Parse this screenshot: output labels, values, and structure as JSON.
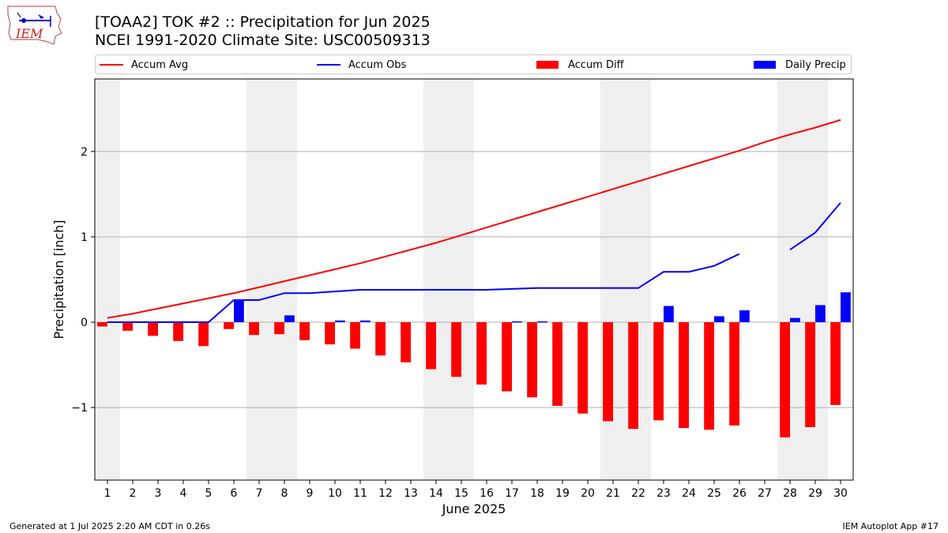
{
  "header": {
    "title_line1": "[TOAA2] TOK #2 :: Precipitation for Jun 2025",
    "title_line2": "NCEI 1991-2020 Climate Site: USC00509313",
    "logo_text": "IEM"
  },
  "legend": {
    "items": [
      {
        "label": "Accum Avg",
        "kind": "line",
        "color": "#ff0000"
      },
      {
        "label": "Accum Obs",
        "kind": "line",
        "color": "#0000ff"
      },
      {
        "label": "Accum Diff",
        "kind": "box",
        "color": "#ff0000"
      },
      {
        "label": "Daily Precip",
        "kind": "box",
        "color": "#0000ff"
      }
    ]
  },
  "footer": {
    "left": "Generated at 1 Jul 2025 2:20 AM CDT in 0.26s",
    "right": "IEM Autoplot App #17"
  },
  "chart_data": {
    "type": "bar",
    "title": "[TOAA2] TOK #2 :: Precipitation for Jun 2025",
    "subtitle": "NCEI 1991-2020 Climate Site: USC00509313",
    "xlabel": "June 2025",
    "ylabel": "Precipitation [inch]",
    "x": [
      1,
      2,
      3,
      4,
      5,
      6,
      7,
      8,
      9,
      10,
      11,
      12,
      13,
      14,
      15,
      16,
      17,
      18,
      19,
      20,
      21,
      22,
      23,
      24,
      25,
      26,
      27,
      28,
      29,
      30
    ],
    "ylim": [
      -1.85,
      2.85
    ],
    "yticks": [
      -1,
      0,
      1,
      2
    ],
    "ytick_labels": [
      "−1",
      "0",
      "1",
      "2"
    ],
    "grid": "horizontal",
    "legend_position": "top",
    "weekend_shading": [
      [
        1,
        1
      ],
      [
        7,
        8
      ],
      [
        14,
        15
      ],
      [
        21,
        22
      ],
      [
        28,
        29
      ]
    ],
    "series": [
      {
        "name": "Accum Avg",
        "kind": "line",
        "color": "#ff0000",
        "values": [
          0.05,
          0.1,
          0.16,
          0.22,
          0.28,
          0.34,
          0.41,
          0.48,
          0.55,
          0.62,
          0.69,
          0.77,
          0.85,
          0.93,
          1.02,
          1.11,
          1.2,
          1.29,
          1.38,
          1.47,
          1.56,
          1.65,
          1.74,
          1.83,
          1.92,
          2.01,
          2.11,
          2.2,
          2.28,
          2.37
        ]
      },
      {
        "name": "Accum Obs",
        "kind": "line",
        "color": "#0000ff",
        "values": [
          0,
          0,
          0,
          0,
          0,
          0.26,
          0.26,
          0.34,
          0.34,
          0.36,
          0.38,
          0.38,
          0.38,
          0.38,
          0.38,
          0.38,
          0.39,
          0.4,
          0.4,
          0.4,
          0.4,
          0.4,
          0.59,
          0.59,
          0.66,
          0.8,
          null,
          0.85,
          1.05,
          1.4
        ]
      },
      {
        "name": "Accum Diff",
        "kind": "bar",
        "color": "#ff0000",
        "values": [
          -0.05,
          -0.1,
          -0.16,
          -0.22,
          -0.28,
          -0.08,
          -0.15,
          -0.14,
          -0.21,
          -0.26,
          -0.31,
          -0.39,
          -0.47,
          -0.55,
          -0.64,
          -0.73,
          -0.81,
          -0.88,
          -0.98,
          -1.07,
          -1.16,
          -1.25,
          -1.15,
          -1.24,
          -1.26,
          -1.21,
          null,
          -1.35,
          -1.23,
          -0.97
        ]
      },
      {
        "name": "Daily Precip",
        "kind": "bar",
        "color": "#0000ff",
        "values": [
          0,
          0,
          0,
          0,
          0,
          0.26,
          0,
          0.08,
          0,
          0.02,
          0.02,
          0,
          0,
          0,
          0,
          0,
          0.01,
          0.01,
          0,
          0,
          0,
          0,
          0.19,
          0,
          0.07,
          0.14,
          null,
          0.05,
          0.2,
          0.35
        ]
      }
    ]
  }
}
